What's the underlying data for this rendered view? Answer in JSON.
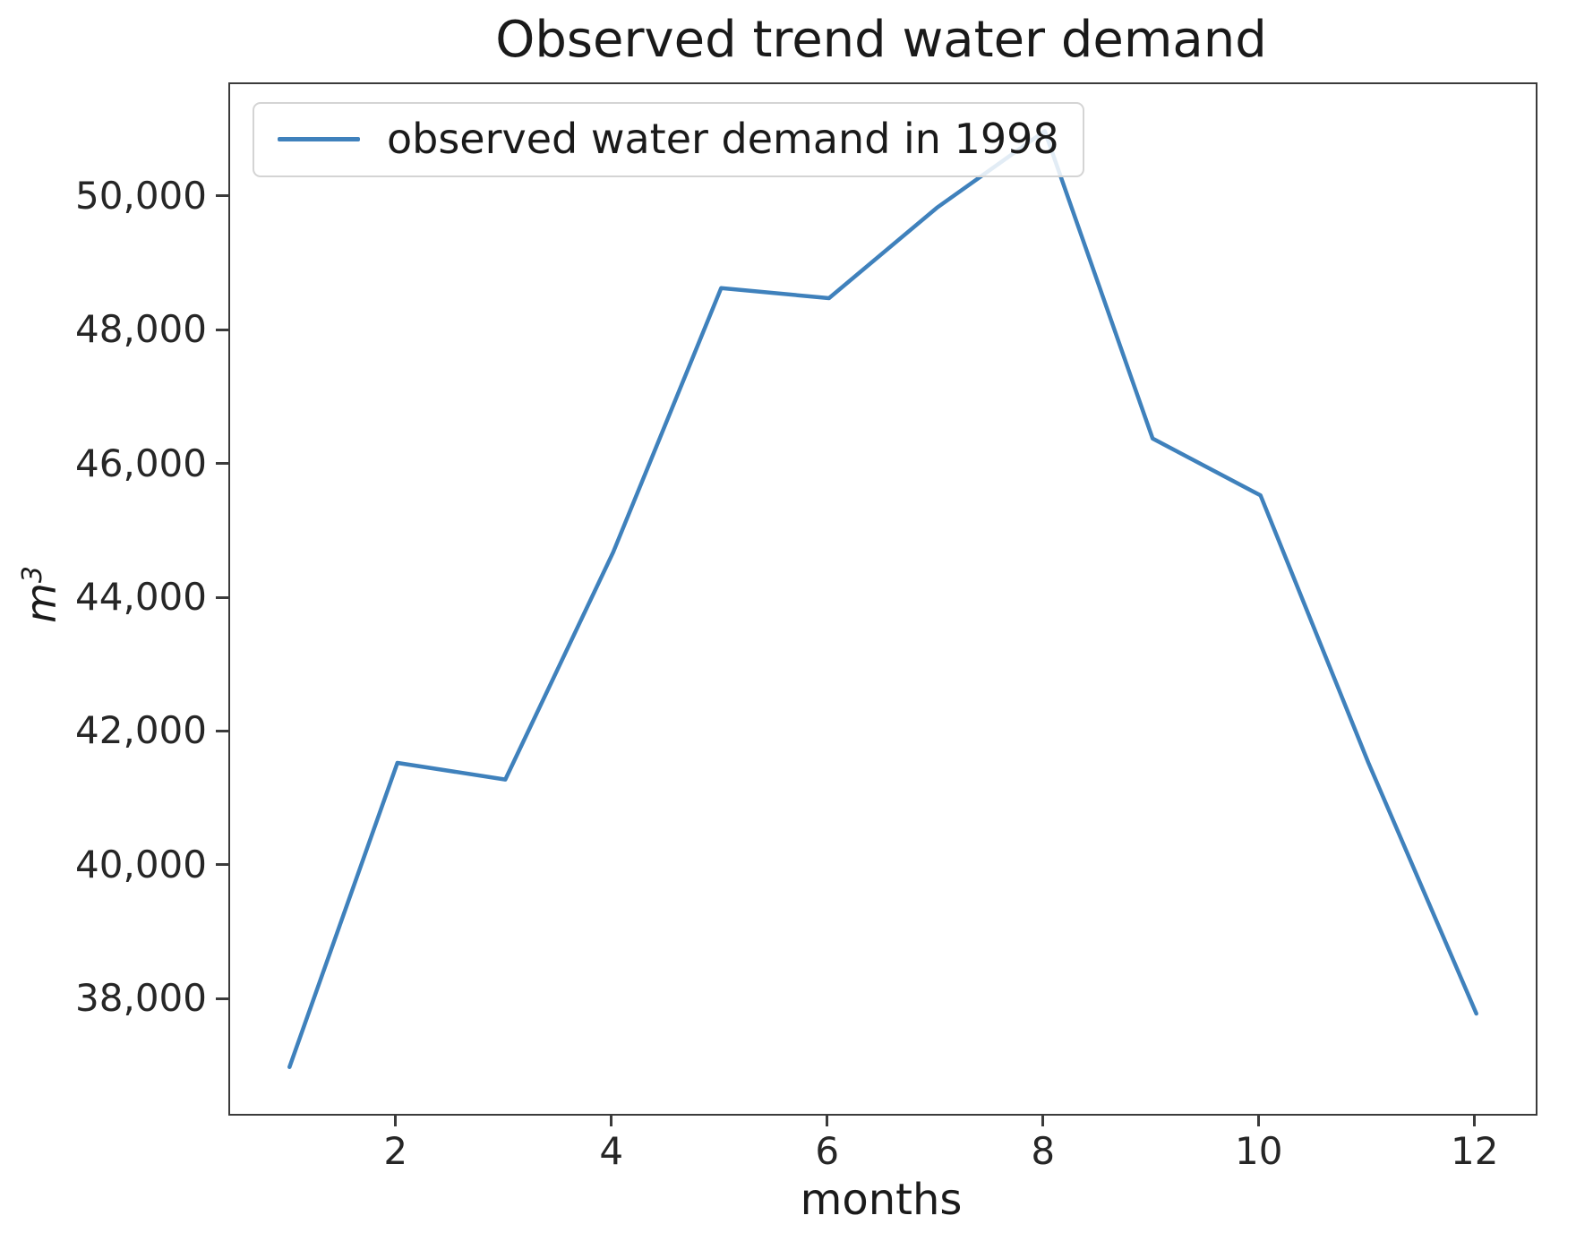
{
  "title": "Observed trend water demand",
  "legend": {
    "label": "observed water demand in 1998"
  },
  "axes": {
    "x_label": "months",
    "y_label_base": "m",
    "y_label_exponent": "3"
  },
  "colors": {
    "line": "#3f81bc",
    "spine": "#3b3b3b",
    "text": "#1a1a1a",
    "legend_border": "#d4d4d4"
  },
  "chart_data": {
    "type": "line",
    "title": "Observed trend water demand",
    "xlabel": "months",
    "ylabel": "m^3",
    "grid": false,
    "legend_position": "upper left",
    "xlim": [
      0.45,
      12.55
    ],
    "ylim": [
      36300,
      51700
    ],
    "x": [
      1,
      2,
      3,
      4,
      5,
      6,
      7,
      8,
      9,
      10,
      11,
      12
    ],
    "series": [
      {
        "name": "observed water demand in 1998",
        "color": "#3f81bc",
        "values": [
          37000,
          41550,
          41300,
          44700,
          48650,
          48500,
          49850,
          51000,
          46400,
          45550,
          41550,
          37800
        ]
      }
    ],
    "xticks": [
      {
        "value": 2,
        "label": "2"
      },
      {
        "value": 4,
        "label": "4"
      },
      {
        "value": 6,
        "label": "6"
      },
      {
        "value": 8,
        "label": "8"
      },
      {
        "value": 10,
        "label": "10"
      },
      {
        "value": 12,
        "label": "12"
      }
    ],
    "yticks": [
      {
        "value": 38000,
        "label": "38,000"
      },
      {
        "value": 40000,
        "label": "40,000"
      },
      {
        "value": 42000,
        "label": "42,000"
      },
      {
        "value": 44000,
        "label": "44,000"
      },
      {
        "value": 46000,
        "label": "46,000"
      },
      {
        "value": 48000,
        "label": "48,000"
      },
      {
        "value": 50000,
        "label": "50,000"
      }
    ]
  }
}
